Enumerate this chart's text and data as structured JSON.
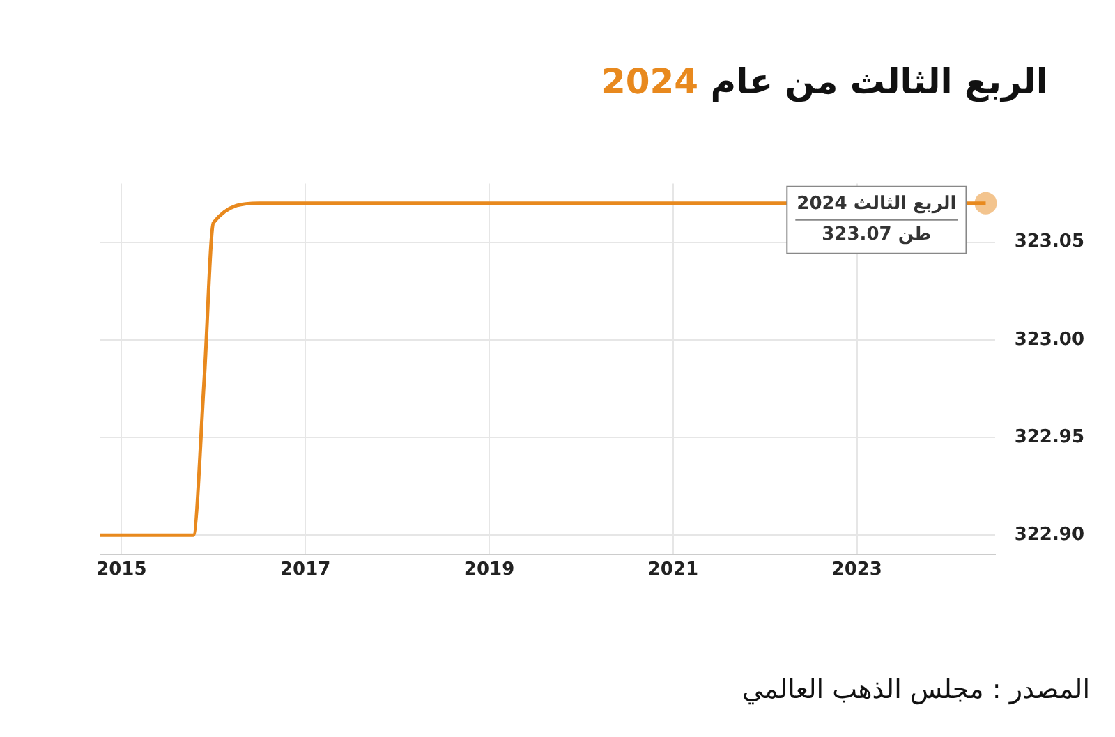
{
  "chart_data": {
    "type": "line",
    "title": "الربع الثالث من عام 2024",
    "x": [
      2014.77,
      2015.78,
      2015.9,
      2016.0,
      2016.5,
      2018,
      2021,
      2024.4
    ],
    "series": [
      {
        "color": "#e8891e",
        "values": [
          322.9,
          322.9,
          322.98,
          323.06,
          323.07,
          323.07,
          323.07,
          323.07
        ]
      }
    ],
    "xlim": [
      2014.77,
      2024.5
    ],
    "xticks": [
      2015,
      2017,
      2019,
      2021,
      2023
    ],
    "ylim": [
      322.89,
      323.08
    ],
    "yticks": [
      {
        "value": 322.9,
        "label": "322.90"
      },
      {
        "value": 322.95,
        "label": "322.95"
      },
      {
        "value": 323.0,
        "label": "323.00"
      },
      {
        "value": 323.05,
        "label": "323.05"
      }
    ],
    "grid": true,
    "marker": "none",
    "line_style": "solid",
    "legend": false,
    "annotations": [
      {
        "text": "الربع الثالث 2024\n323.07 طن",
        "x": 2024.4,
        "y": 323.07
      },
      "المصدر : مجلس الذهب العالمي"
    ]
  }
}
